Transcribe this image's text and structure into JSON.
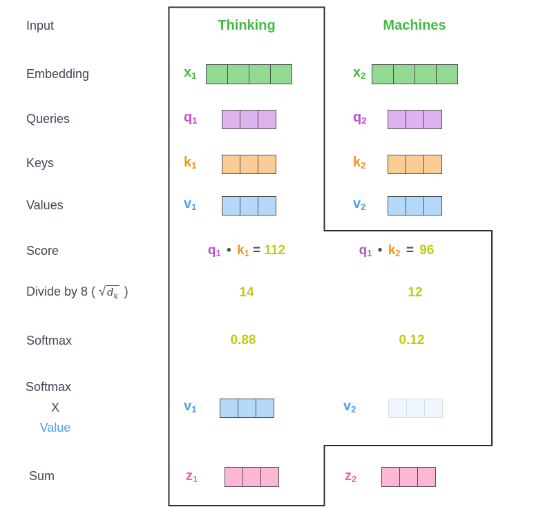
{
  "headers": {
    "col1": "Thinking",
    "col2": "Machines"
  },
  "left_labels": {
    "input": "Input",
    "embedding": "Embedding",
    "queries": "Queries",
    "keys": "Keys",
    "values": "Values",
    "score": "Score",
    "divide_prefix": "Divide by 8 (",
    "divide_sqrt": "√",
    "divide_d": "d",
    "divide_k": "k",
    "divide_suffix": ")",
    "softmax": "Softmax",
    "sxv_line1": "Softmax",
    "sxv_line2": "X",
    "sxv_line3": "Value",
    "sum": "Sum"
  },
  "vectors": {
    "x1": {
      "label": "x",
      "sub": "1",
      "cells": 4
    },
    "x2": {
      "label": "x",
      "sub": "2",
      "cells": 4
    },
    "q1": {
      "label": "q",
      "sub": "1",
      "cells": 3
    },
    "q2": {
      "label": "q",
      "sub": "2",
      "cells": 3
    },
    "k1": {
      "label": "k",
      "sub": "1",
      "cells": 3
    },
    "k2": {
      "label": "k",
      "sub": "2",
      "cells": 3
    },
    "v1": {
      "label": "v",
      "sub": "1",
      "cells": 3
    },
    "v2": {
      "label": "v",
      "sub": "2",
      "cells": 3
    },
    "v1_weighted": {
      "label": "v",
      "sub": "1",
      "cells": 3
    },
    "v2_weighted": {
      "label": "v",
      "sub": "2",
      "cells": 3
    },
    "z1": {
      "label": "z",
      "sub": "1",
      "cells": 3
    },
    "z2": {
      "label": "z",
      "sub": "2",
      "cells": 3
    }
  },
  "scores": {
    "col1": {
      "q": "q",
      "q_sub": "1",
      "dot": "•",
      "k": "k",
      "k_sub": "1",
      "equals": "=",
      "value": "112"
    },
    "col2": {
      "q": "q",
      "q_sub": "1",
      "dot": "•",
      "k": "k",
      "k_sub": "2",
      "equals": "=",
      "value": "96"
    }
  },
  "divide": {
    "col1": "14",
    "col2": "12"
  },
  "softmax": {
    "col1": "0.88",
    "col2": "0.12"
  },
  "colors": {
    "label_text": "#3f4756",
    "green": "#41bb45",
    "green_fill": "#92d992",
    "purple": "#bb4fd4",
    "purple_fill": "#dcb3ee",
    "orange": "#f5941d",
    "orange_fill": "#fbcd96",
    "blue": "#4aa0f5",
    "blue_fill": "#b4d8f8",
    "blue_faded_fill": "#eff5fc",
    "pink": "#fb5ba5",
    "pink_fill": "#fdb6d6",
    "score_yellow": "#c3ca10",
    "outline": "#2e2e2e",
    "cell_border": "#4d4d4d"
  }
}
